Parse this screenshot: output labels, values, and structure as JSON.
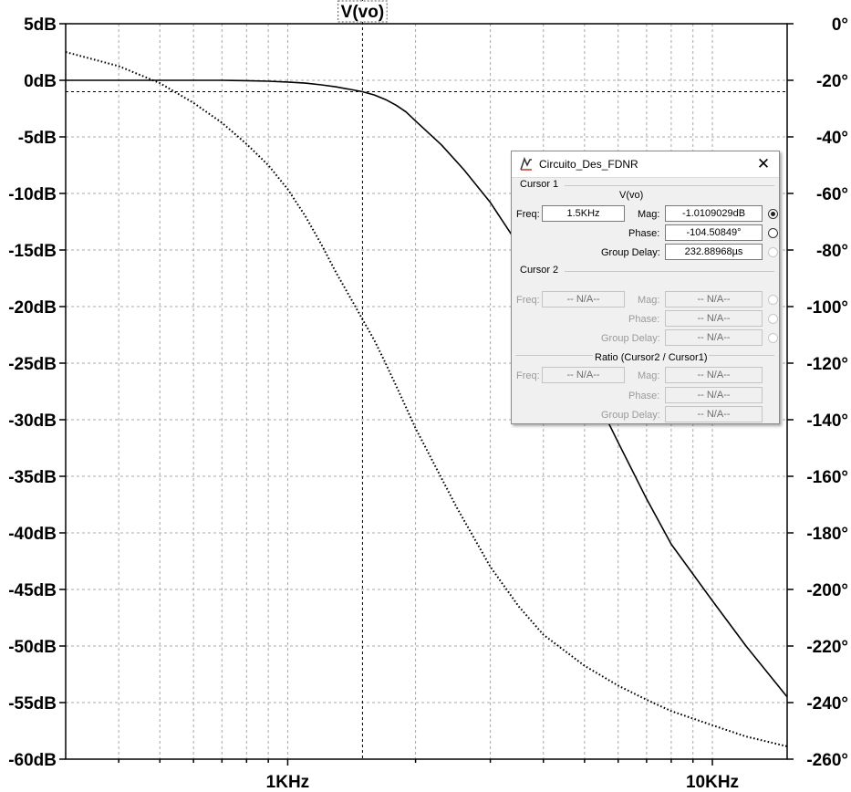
{
  "chart_data": {
    "type": "line",
    "title": "V(vo)",
    "x_scale": "log",
    "xlim": [
      300,
      15000
    ],
    "ylim_left": [
      -60,
      5
    ],
    "ylim_right": [
      -260,
      0
    ],
    "grid": true,
    "x_tick_labels": [
      {
        "value": 1000,
        "label": "1KHz"
      },
      {
        "value": 10000,
        "label": "10KHz"
      }
    ],
    "y_left_ticks": [
      {
        "value": 5,
        "label": "5dB"
      },
      {
        "value": 0,
        "label": "0dB"
      },
      {
        "value": -5,
        "label": "-5dB"
      },
      {
        "value": -10,
        "label": "-10dB"
      },
      {
        "value": -15,
        "label": "-15dB"
      },
      {
        "value": -20,
        "label": "-20dB"
      },
      {
        "value": -25,
        "label": "-25dB"
      },
      {
        "value": -30,
        "label": "-30dB"
      },
      {
        "value": -35,
        "label": "-35dB"
      },
      {
        "value": -40,
        "label": "-40dB"
      },
      {
        "value": -45,
        "label": "-45dB"
      },
      {
        "value": -50,
        "label": "-50dB"
      },
      {
        "value": -55,
        "label": "-55dB"
      },
      {
        "value": -60,
        "label": "-60dB"
      }
    ],
    "y_right_ticks": [
      {
        "value": 0,
        "label": "0°"
      },
      {
        "value": -20,
        "label": "-20°"
      },
      {
        "value": -40,
        "label": "-40°"
      },
      {
        "value": -60,
        "label": "-60°"
      },
      {
        "value": -80,
        "label": "-80°"
      },
      {
        "value": -100,
        "label": "-100°"
      },
      {
        "value": -120,
        "label": "-120°"
      },
      {
        "value": -140,
        "label": "-140°"
      },
      {
        "value": -160,
        "label": "-160°"
      },
      {
        "value": -180,
        "label": "-180°"
      },
      {
        "value": -200,
        "label": "-200°"
      },
      {
        "value": -220,
        "label": "-220°"
      },
      {
        "value": -240,
        "label": "-240°"
      },
      {
        "value": -260,
        "label": "-260°"
      }
    ],
    "magnitude_db": {
      "x": [
        300,
        400,
        500,
        600,
        700,
        800,
        900,
        1000,
        1100,
        1200,
        1300,
        1400,
        1500,
        1600,
        1700,
        1800,
        1900,
        2000,
        2300,
        2600,
        3000,
        3500,
        4000,
        5000,
        6000,
        7000,
        8000,
        10000,
        12000,
        15000
      ],
      "y": [
        0.0,
        0.0,
        0.0,
        0.0,
        0.0,
        -0.03,
        -0.08,
        -0.15,
        -0.25,
        -0.4,
        -0.58,
        -0.8,
        -1.01,
        -1.3,
        -1.7,
        -2.2,
        -2.8,
        -3.6,
        -5.7,
        -7.9,
        -10.8,
        -14.6,
        -18.7,
        -26,
        -32,
        -37,
        -41,
        -46,
        -50,
        -54.5
      ]
    },
    "phase_deg": {
      "x": [
        300,
        400,
        500,
        600,
        700,
        800,
        900,
        1000,
        1100,
        1200,
        1300,
        1400,
        1500,
        1600,
        1700,
        1800,
        2000,
        2200,
        2500,
        3000,
        3500,
        4000,
        5000,
        6000,
        7000,
        8000,
        10000,
        12000,
        15000
      ],
      "y": [
        -10,
        -15,
        -21,
        -28,
        -35,
        -42.5,
        -50,
        -58.5,
        -68,
        -78,
        -88,
        -96.5,
        -104.5,
        -112,
        -120,
        -128,
        -143,
        -155,
        -171,
        -192,
        -206,
        -216,
        -227,
        -234,
        -239,
        -243,
        -248,
        -252,
        -255.5
      ]
    },
    "cursor1": {
      "x": 1500,
      "y_db": -1.0109029
    }
  },
  "dialog": {
    "title": "Circuito_Des_FDNR",
    "icon": "ltspice-icon",
    "cursor1_label": "Cursor 1",
    "trace_name": "V(vo)",
    "freq_label": "Freq:",
    "freq_value": "1.5KHz",
    "mag_label": "Mag:",
    "mag_value": "-1.0109029dB",
    "phase_label": "Phase:",
    "phase_value": "-104.50849°",
    "gd_label": "Group Delay:",
    "gd_value": "232.88968µs",
    "cursor2_label": "Cursor 2",
    "na": "-- N/A--",
    "ratio_label": "Ratio (Cursor2 / Cursor1)"
  }
}
